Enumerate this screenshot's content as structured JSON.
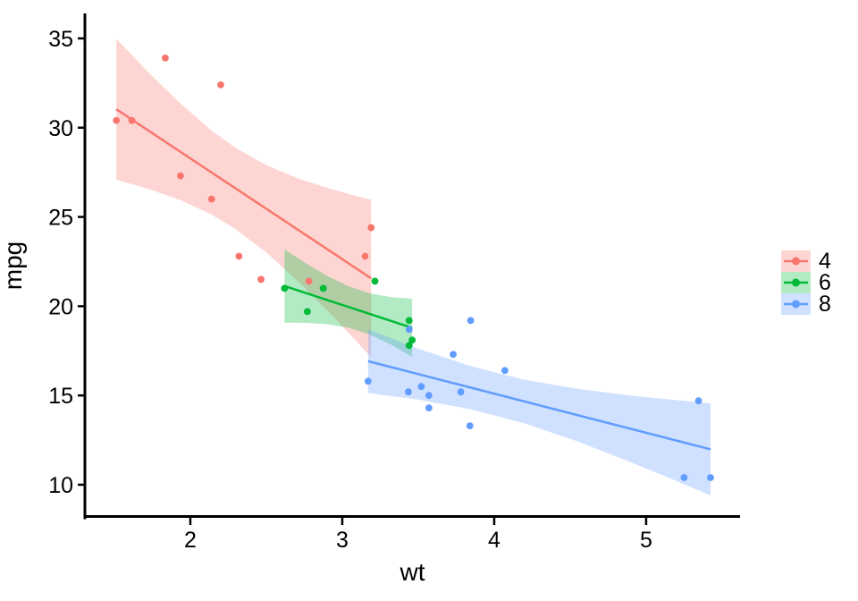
{
  "colors": {
    "cyl4": "#F8766D",
    "cyl6": "#00BA38",
    "cyl8": "#619CFF",
    "axis": "#000000",
    "background": "#FFFFFF",
    "ribbon_opacity": 0.3
  },
  "chart_data": {
    "type": "scatter",
    "smooth": "linear fit with 95% confidence ribbon per group",
    "title": "",
    "xlabel": "wt",
    "ylabel": "mpg",
    "x_domain": [
      1.306,
      5.618
    ],
    "y_domain": [
      8.146,
      36.4
    ],
    "x_ticks": [
      2,
      3,
      4,
      5
    ],
    "y_ticks": [
      10,
      15,
      20,
      25,
      30,
      35
    ],
    "grid": false,
    "legend": {
      "position": "right",
      "title": "",
      "entries": [
        "4",
        "6",
        "8"
      ]
    },
    "series": [
      {
        "name": "4",
        "color": "#F8766D",
        "points": [
          [
            2.32,
            22.8
          ],
          [
            3.19,
            24.4
          ],
          [
            3.15,
            22.8
          ],
          [
            2.2,
            32.4
          ],
          [
            1.615,
            30.4
          ],
          [
            1.835,
            33.9
          ],
          [
            2.465,
            21.5
          ],
          [
            1.935,
            27.3
          ],
          [
            2.14,
            26.0
          ],
          [
            1.513,
            30.4
          ],
          [
            2.78,
            21.4
          ]
        ],
        "fit": {
          "x1": 1.513,
          "y1": 31.03,
          "x2": 3.19,
          "y2": 21.56
        },
        "ribbon": [
          [
            1.513,
            27.08,
            34.98
          ],
          [
            1.72,
            26.58,
            33.14
          ],
          [
            1.93,
            25.96,
            31.39
          ],
          [
            2.14,
            25.13,
            29.84
          ],
          [
            2.29,
            24.37,
            28.91
          ],
          [
            2.5,
            23.01,
            27.9
          ],
          [
            2.71,
            21.38,
            27.15
          ],
          [
            2.92,
            19.59,
            26.58
          ],
          [
            3.05,
            18.43,
            26.27
          ],
          [
            3.19,
            17.14,
            25.97
          ]
        ]
      },
      {
        "name": "6",
        "color": "#00BA38",
        "points": [
          [
            2.62,
            21.0
          ],
          [
            2.875,
            21.0
          ],
          [
            3.215,
            21.4
          ],
          [
            3.46,
            18.1
          ],
          [
            3.44,
            19.2
          ],
          [
            3.44,
            17.8
          ],
          [
            2.77,
            19.7
          ]
        ],
        "fit": {
          "x1": 2.62,
          "y1": 21.13,
          "x2": 3.46,
          "y2": 18.79
        },
        "ribbon": [
          [
            2.62,
            19.08,
            23.18
          ],
          [
            2.76,
            19.07,
            22.4
          ],
          [
            2.9,
            18.99,
            21.7
          ],
          [
            3.04,
            18.8,
            21.12
          ],
          [
            3.18,
            18.42,
            20.72
          ],
          [
            3.32,
            17.85,
            20.51
          ],
          [
            3.46,
            17.16,
            20.42
          ]
        ]
      },
      {
        "name": "8",
        "color": "#619CFF",
        "points": [
          [
            3.44,
            18.7
          ],
          [
            3.57,
            14.3
          ],
          [
            4.07,
            16.4
          ],
          [
            3.73,
            17.3
          ],
          [
            3.78,
            15.2
          ],
          [
            5.25,
            10.4
          ],
          [
            5.424,
            10.4
          ],
          [
            5.345,
            14.7
          ],
          [
            3.52,
            15.5
          ],
          [
            3.435,
            15.2
          ],
          [
            3.84,
            13.3
          ],
          [
            3.845,
            19.2
          ],
          [
            3.17,
            15.8
          ],
          [
            3.57,
            15.0
          ]
        ],
        "fit": {
          "x1": 3.17,
          "y1": 16.92,
          "x2": 5.424,
          "y2": 11.98
        },
        "ribbon": [
          [
            3.17,
            15.14,
            18.7
          ],
          [
            3.5,
            14.77,
            17.62
          ],
          [
            3.85,
            14.22,
            16.63
          ],
          [
            4.2,
            13.44,
            15.88
          ],
          [
            4.55,
            12.42,
            15.37
          ],
          [
            4.9,
            11.26,
            14.99
          ],
          [
            5.16,
            10.35,
            14.77
          ],
          [
            5.424,
            9.4,
            14.56
          ]
        ]
      }
    ]
  }
}
